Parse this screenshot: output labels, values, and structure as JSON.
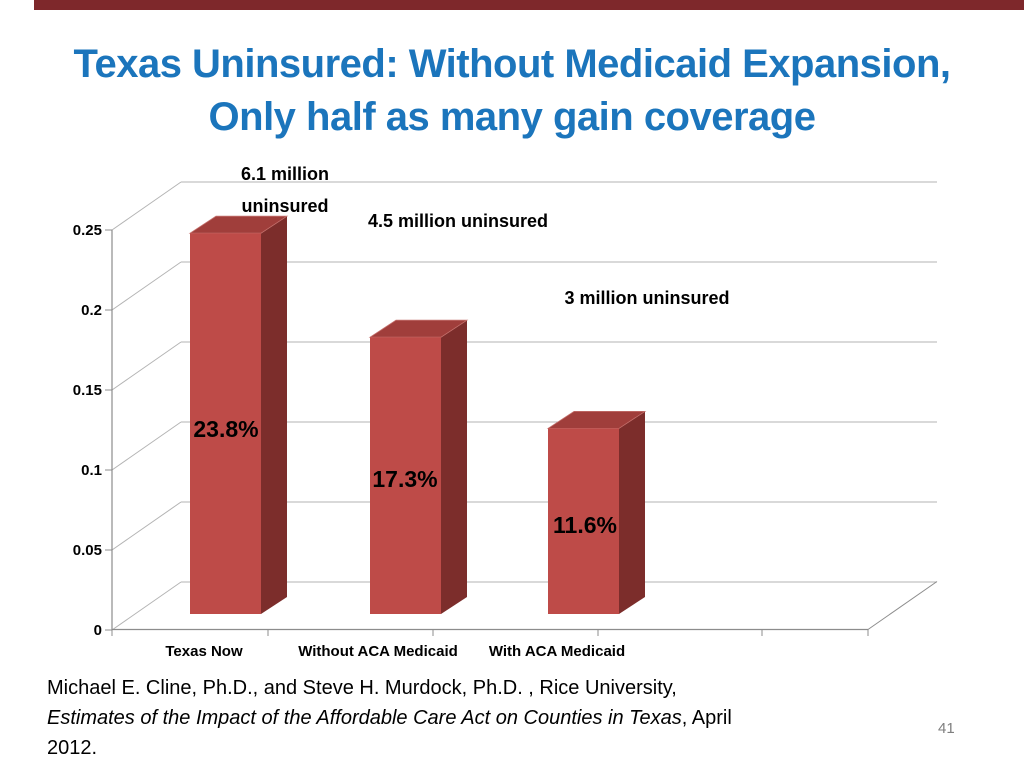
{
  "slide": {
    "title_line1": "Texas Uninsured: Without Medicaid Expansion,",
    "title_line2": "Only half as many gain coverage",
    "title_color": "#1B75BC",
    "top_bar_color": "#7E282B",
    "page_number": "41"
  },
  "footer": {
    "line1": "Michael E. Cline, Ph.D., and Steve H. Murdock, Ph.D. , Rice University,",
    "line2_italic": "Estimates of the Impact of the Affordable Care Act on Counties in Texas",
    "line2_rest": ", April",
    "line3": "2012."
  },
  "chart_data": {
    "type": "bar",
    "style": "3d-column",
    "title": "",
    "xlabel": "",
    "ylabel": "",
    "categories": [
      "Texas Now",
      "Without ACA Medicaid",
      "With ACA Medicaid"
    ],
    "values": [
      0.238,
      0.173,
      0.116
    ],
    "value_labels": [
      "23.8%",
      "17.3%",
      "11.6%"
    ],
    "annotations": [
      {
        "lines": [
          "6.1 million",
          "uninsured"
        ]
      },
      {
        "lines": [
          "4.5 million uninsured"
        ]
      },
      {
        "lines": [
          "3 million uninsured"
        ]
      }
    ],
    "yticks": [
      "0.25",
      "0.2",
      "0.15",
      "0.1",
      "0.05",
      "0"
    ],
    "ylim": [
      0,
      0.25
    ],
    "grid": true,
    "legend": "none",
    "bar_colors": {
      "front": "#BE4B48",
      "top": "#A03E3B",
      "side": "#7C2D2B"
    },
    "gridline_color": "#B3B3B3",
    "axis_color": "#8C8C8C"
  }
}
